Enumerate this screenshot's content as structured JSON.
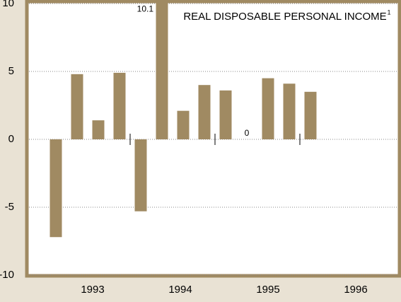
{
  "chart_data": {
    "type": "bar",
    "title": "REAL DISPOSABLE PERSONAL INCOME",
    "title_note": "1",
    "categories": [
      null,
      null,
      null,
      null,
      null,
      null,
      null,
      null,
      null,
      null,
      null,
      null,
      null,
      null,
      null,
      null
    ],
    "year_labels": [
      "1993",
      "1994",
      "1995",
      "1996"
    ],
    "values": [
      -7.2,
      4.8,
      1.4,
      4.9,
      -5.3,
      10.1,
      2.1,
      4.0,
      3.6,
      0,
      4.5,
      4.1,
      3.5,
      null,
      null,
      null
    ],
    "value_labels": [
      null,
      null,
      null,
      null,
      null,
      "10.1",
      null,
      null,
      null,
      "0",
      null,
      null,
      null,
      null,
      null,
      null
    ],
    "color": "#a08a62",
    "ylim": [
      -10,
      10
    ],
    "yticks": [
      -10,
      -5,
      0,
      5,
      10
    ],
    "grid": true
  }
}
